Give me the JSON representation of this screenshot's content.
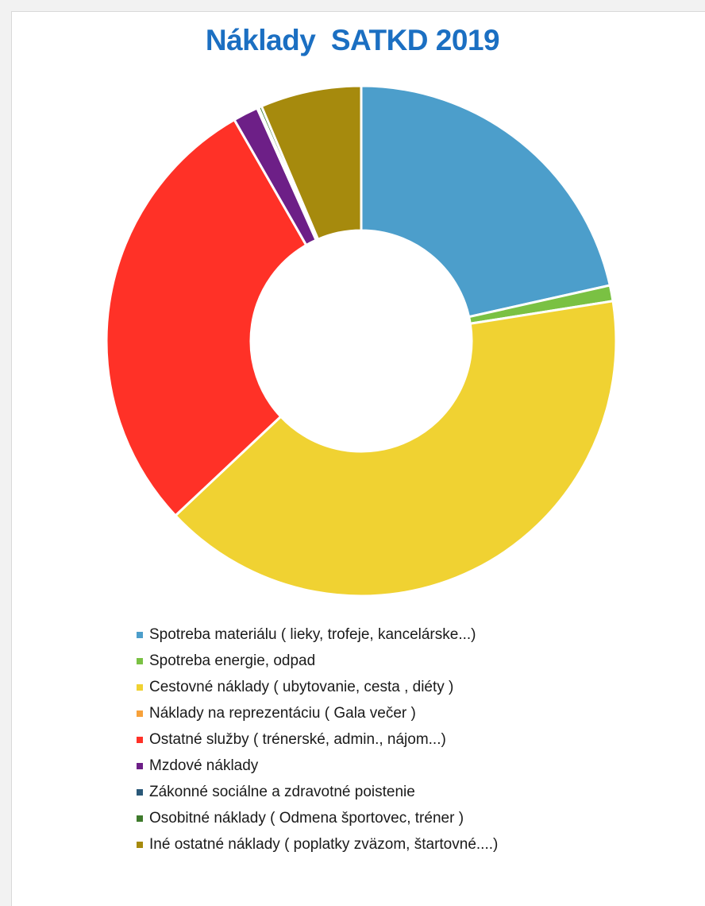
{
  "chart_data": {
    "type": "pie",
    "variant": "donut",
    "title": "Náklady  SATKD 2019",
    "legend_position": "bottom",
    "categories": [
      "Spotreba materiálu ( lieky, trofeje, kancelárske...)",
      "Spotreba energie, odpad",
      "Cestovné náklady ( ubytovanie, cesta , diéty )",
      "Náklady na reprezentáciu ( Gala večer )",
      "Ostatné služby ( trénerské, admin., nájom...)",
      "Mzdové náklady",
      "Zákonné sociálne a zdravotné poistenie",
      "Osobitné náklady ( Odmena športovec, tréner )",
      "Iné ostatné náklady ( poplatky zväzom, štartovné....)"
    ],
    "values": [
      21.5,
      1.0,
      40.5,
      0.0,
      28.7,
      1.6,
      0.1,
      0.2,
      6.4
    ],
    "colors": [
      "#4c9ecb",
      "#7ac143",
      "#f0d232",
      "#f7a13a",
      "#ff3127",
      "#6d1f87",
      "#2a5878",
      "#3e7a2c",
      "#a68a0d"
    ]
  }
}
